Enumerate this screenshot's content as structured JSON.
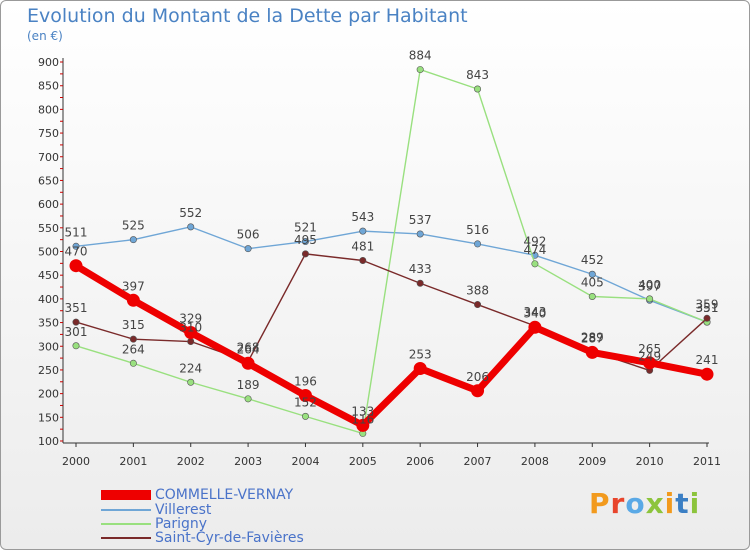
{
  "header": {
    "title": "Evolution du Montant de la Dette par Habitant",
    "subtitle": "(en €)"
  },
  "logo": {
    "text": "Proxiti"
  },
  "chart_data": {
    "type": "line",
    "title": "Evolution du Montant de la Dette par Habitant",
    "subtitle": "(en €)",
    "xlabel": "",
    "ylabel": "",
    "x": [
      "2000",
      "2001",
      "2002",
      "2003",
      "2004",
      "2005",
      "2006",
      "2007",
      "2008",
      "2009",
      "2010",
      "2011"
    ],
    "ylim": [
      100,
      900
    ],
    "yticks": [
      100,
      150,
      200,
      250,
      300,
      350,
      400,
      450,
      500,
      550,
      600,
      650,
      700,
      750,
      800,
      850,
      900
    ],
    "grid": false,
    "legend_position": "bottom-left",
    "series": [
      {
        "name": "COMMELLE-VERNAY",
        "color": "#ee0000",
        "values": [
          470,
          397,
          329,
          264,
          196,
          133,
          253,
          206,
          340,
          287,
          265,
          241
        ],
        "labels": [
          "470",
          "397",
          "329",
          "264",
          "196",
          "133",
          "253",
          "206",
          "340",
          "287",
          "265",
          "241"
        ]
      },
      {
        "name": "Villerest",
        "color": "#6fa6d6",
        "values": [
          511,
          525,
          552,
          506,
          521,
          543,
          537,
          516,
          492,
          452,
          397,
          351
        ],
        "labels": [
          "511",
          "525",
          "552",
          "506",
          "521",
          "543",
          "537",
          "516",
          "492",
          "452",
          "397",
          "351"
        ]
      },
      {
        "name": "Parigny",
        "color": "#99e07f",
        "values": [
          301,
          264,
          224,
          189,
          152,
          116,
          884,
          843,
          474,
          405,
          400,
          351
        ],
        "labels": [
          "301",
          "264",
          "224",
          "189",
          "152",
          "116",
          "884",
          "843",
          "474",
          "405",
          "400",
          "351"
        ]
      },
      {
        "name": "Saint-Cyr-de-Favières",
        "color": "#7a2a2a",
        "values": [
          351,
          315,
          310,
          268,
          495,
          481,
          433,
          388,
          343,
          289,
          249,
          359
        ],
        "labels": [
          "351",
          "315",
          "310",
          "268",
          "495",
          "481",
          "433",
          "388",
          "343",
          "289",
          "249",
          "359"
        ]
      }
    ]
  }
}
